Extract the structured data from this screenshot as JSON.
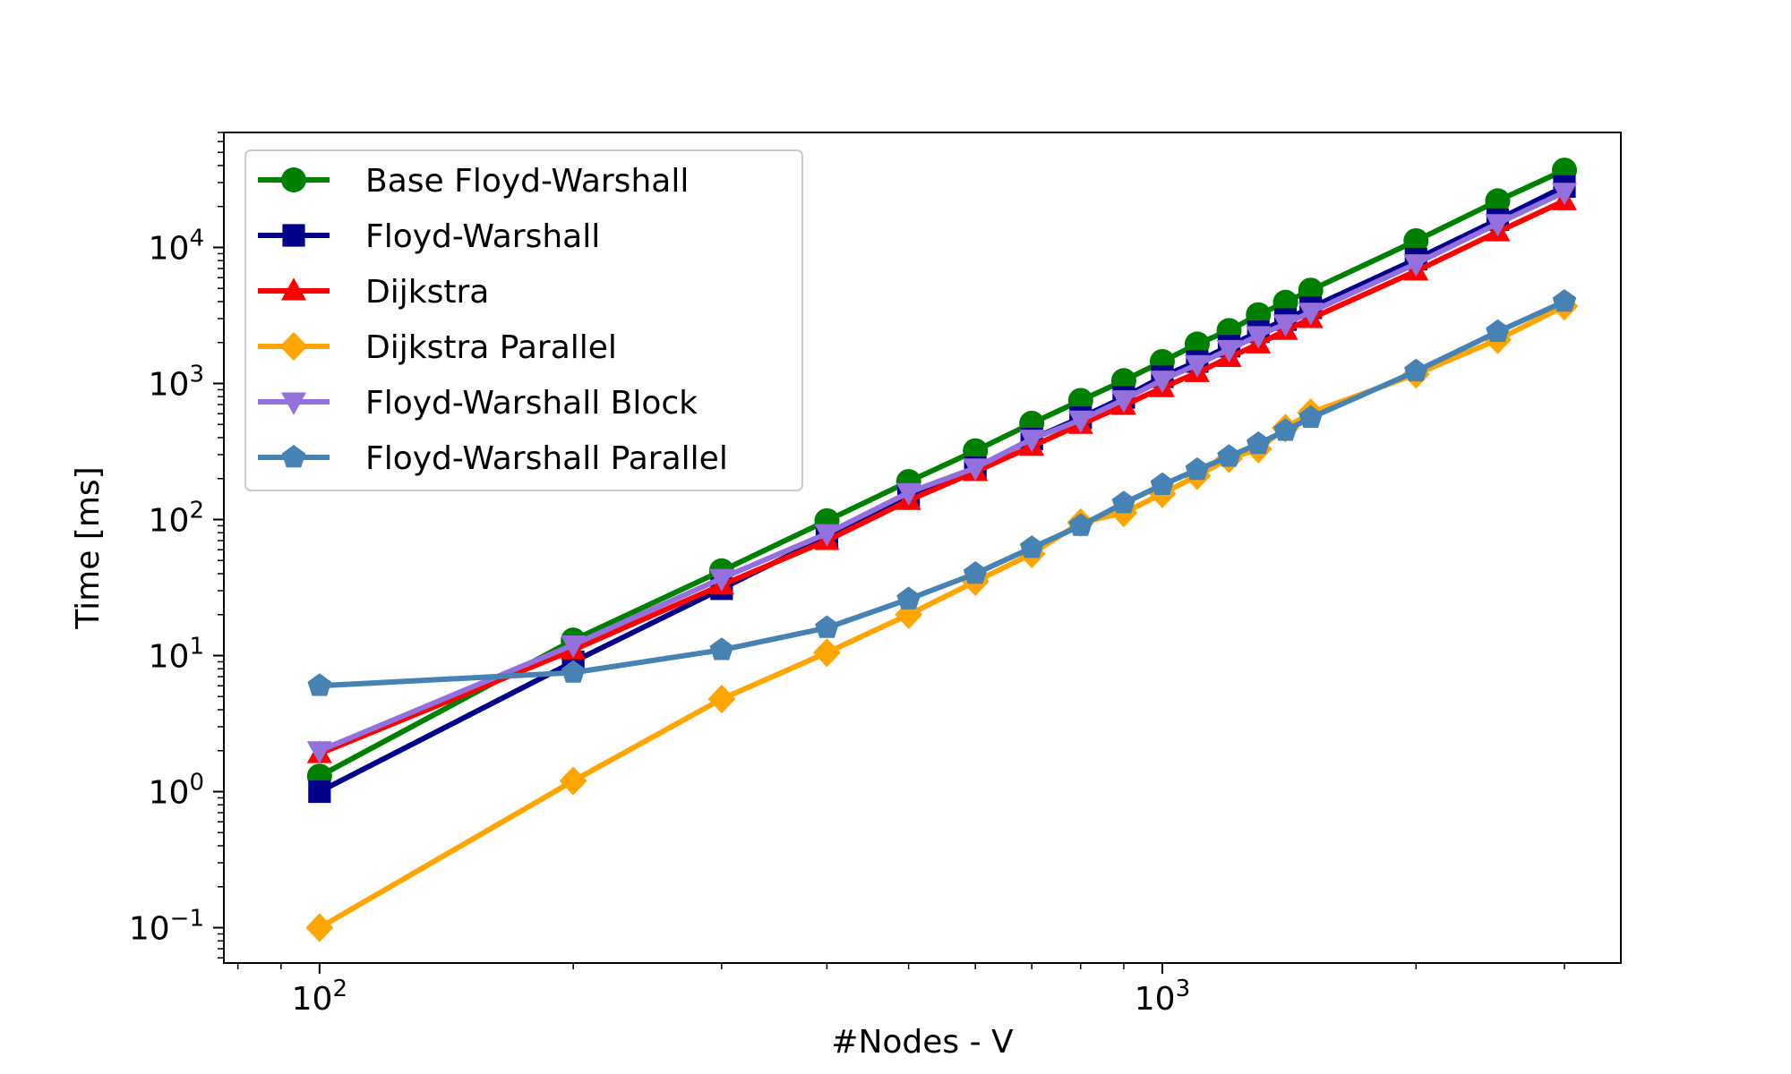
{
  "chart_data": {
    "type": "line",
    "title": "",
    "xlabel": "#Nodes - V",
    "ylabel": "Time [ms]",
    "xscale": "log",
    "yscale": "log",
    "xlim": [
      77,
      3500
    ],
    "ylim": [
      0.055,
      70000
    ],
    "grid": false,
    "legend_position": "top-left",
    "x_ticks": [
      {
        "value": 100,
        "base": "10",
        "exp": "2"
      },
      {
        "value": 1000,
        "base": "10",
        "exp": "3"
      }
    ],
    "y_ticks": [
      {
        "value": 0.1,
        "base": "10",
        "exp": "−1"
      },
      {
        "value": 1,
        "base": "10",
        "exp": "0"
      },
      {
        "value": 10,
        "base": "10",
        "exp": "1"
      },
      {
        "value": 100,
        "base": "10",
        "exp": "2"
      },
      {
        "value": 1000,
        "base": "10",
        "exp": "3"
      },
      {
        "value": 10000,
        "base": "10",
        "exp": "4"
      }
    ],
    "x": [
      100,
      200,
      300,
      400,
      500,
      600,
      700,
      800,
      900,
      1000,
      1100,
      1200,
      1300,
      1400,
      1500,
      2000,
      2500,
      3000
    ],
    "series": [
      {
        "name": "Base Floyd-Warshall",
        "color": "#008000",
        "marker": "circle",
        "values": [
          1.3,
          13,
          42,
          98,
          190,
          320,
          510,
          750,
          1050,
          1450,
          1950,
          2450,
          3200,
          3950,
          4850,
          11200,
          22000,
          37000
        ]
      },
      {
        "name": "Floyd-Warshall",
        "color": "#00008b",
        "marker": "square",
        "values": [
          1.0,
          9,
          31,
          75,
          150,
          240,
          390,
          560,
          790,
          1120,
          1450,
          1880,
          2400,
          2950,
          3600,
          8200,
          16000,
          28000
        ]
      },
      {
        "name": "Dijkstra",
        "color": "#ff0000",
        "marker": "triangle-up",
        "values": [
          1.9,
          11,
          33,
          70,
          138,
          225,
          345,
          500,
          690,
          930,
          1200,
          1550,
          1950,
          2450,
          3000,
          6700,
          13000,
          22000
        ]
      },
      {
        "name": "Dijkstra Parallel",
        "color": "#ffa500",
        "marker": "diamond",
        "values": [
          0.1,
          1.2,
          4.8,
          10.5,
          20,
          35,
          56,
          95,
          112,
          155,
          210,
          280,
          330,
          470,
          610,
          1170,
          2100,
          3700
        ]
      },
      {
        "name": "Floyd-Warshall Block",
        "color": "#9370db",
        "marker": "triangle-down",
        "values": [
          2.0,
          12,
          37,
          79,
          158,
          240,
          390,
          540,
          760,
          1060,
          1380,
          1780,
          2250,
          2750,
          3350,
          7600,
          15000,
          25500
        ]
      },
      {
        "name": "Floyd-Warshall Parallel",
        "color": "#4682b4",
        "marker": "pentagon",
        "values": [
          6.0,
          7.5,
          11,
          16,
          26,
          40,
          62,
          90,
          132,
          180,
          232,
          290,
          360,
          450,
          560,
          1230,
          2400,
          4000
        ]
      }
    ]
  }
}
